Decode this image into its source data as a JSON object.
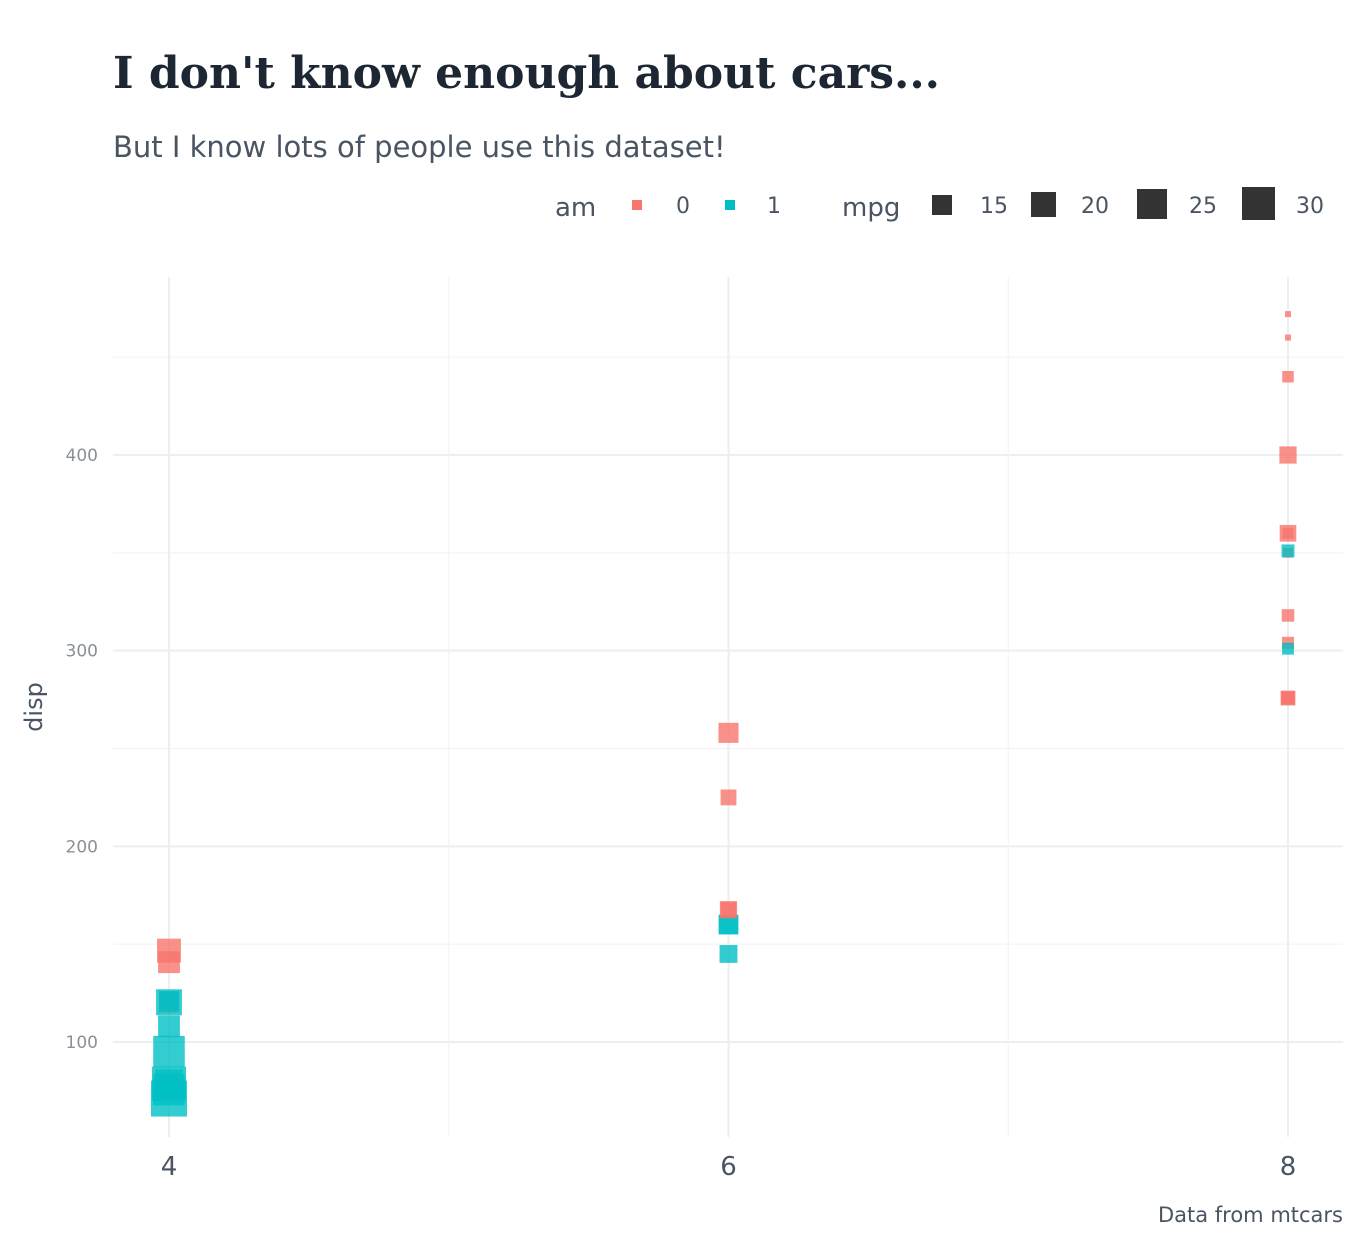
{
  "chart_data": {
    "type": "scatter",
    "title": "I don't know enough about cars...",
    "subtitle": "But I know lots of people use this dataset!",
    "caption": "Data from mtcars",
    "xlabel": "",
    "ylabel": "disp",
    "x_ticks": [
      4,
      6,
      8
    ],
    "y_ticks": [
      100,
      200,
      300,
      400
    ],
    "xlim": [
      3.8,
      8.2
    ],
    "ylim": [
      50,
      490
    ],
    "grid": true,
    "legend_position": "top-right",
    "color_legend": {
      "title": "am",
      "entries": [
        {
          "label": "0",
          "color": "#F8766D"
        },
        {
          "label": "1",
          "color": "#00BFC4"
        }
      ]
    },
    "size_legend": {
      "title": "mpg",
      "entries": [
        {
          "label": "15",
          "value": 15
        },
        {
          "label": "20",
          "value": 20
        },
        {
          "label": "25",
          "value": 25
        },
        {
          "label": "30",
          "value": 30
        }
      ]
    },
    "mpg_range": [
      10.4,
      33.9
    ],
    "points": [
      {
        "cyl": 6,
        "disp": 160,
        "am": 1,
        "mpg": 21.0
      },
      {
        "cyl": 6,
        "disp": 160,
        "am": 1,
        "mpg": 21.0
      },
      {
        "cyl": 4,
        "disp": 108,
        "am": 1,
        "mpg": 22.8
      },
      {
        "cyl": 6,
        "disp": 258,
        "am": 0,
        "mpg": 21.4
      },
      {
        "cyl": 8,
        "disp": 360,
        "am": 0,
        "mpg": 18.7
      },
      {
        "cyl": 6,
        "disp": 225,
        "am": 0,
        "mpg": 18.1
      },
      {
        "cyl": 8,
        "disp": 360,
        "am": 0,
        "mpg": 14.3
      },
      {
        "cyl": 4,
        "disp": 146.7,
        "am": 0,
        "mpg": 24.4
      },
      {
        "cyl": 4,
        "disp": 140.8,
        "am": 0,
        "mpg": 22.8
      },
      {
        "cyl": 6,
        "disp": 167.6,
        "am": 0,
        "mpg": 19.2
      },
      {
        "cyl": 6,
        "disp": 167.6,
        "am": 0,
        "mpg": 17.8
      },
      {
        "cyl": 8,
        "disp": 275.8,
        "am": 0,
        "mpg": 16.4
      },
      {
        "cyl": 8,
        "disp": 275.8,
        "am": 0,
        "mpg": 17.3
      },
      {
        "cyl": 8,
        "disp": 275.8,
        "am": 0,
        "mpg": 15.2
      },
      {
        "cyl": 8,
        "disp": 472,
        "am": 0,
        "mpg": 10.4
      },
      {
        "cyl": 8,
        "disp": 460,
        "am": 0,
        "mpg": 10.4
      },
      {
        "cyl": 8,
        "disp": 440,
        "am": 0,
        "mpg": 14.7
      },
      {
        "cyl": 4,
        "disp": 78.7,
        "am": 1,
        "mpg": 32.4
      },
      {
        "cyl": 4,
        "disp": 75.7,
        "am": 1,
        "mpg": 30.4
      },
      {
        "cyl": 4,
        "disp": 71.1,
        "am": 1,
        "mpg": 33.9
      },
      {
        "cyl": 4,
        "disp": 120.1,
        "am": 0,
        "mpg": 21.5
      },
      {
        "cyl": 8,
        "disp": 318,
        "am": 0,
        "mpg": 15.5
      },
      {
        "cyl": 8,
        "disp": 304,
        "am": 0,
        "mpg": 15.2
      },
      {
        "cyl": 8,
        "disp": 350,
        "am": 0,
        "mpg": 13.3
      },
      {
        "cyl": 8,
        "disp": 400,
        "am": 0,
        "mpg": 19.2
      },
      {
        "cyl": 4,
        "disp": 79,
        "am": 1,
        "mpg": 27.3
      },
      {
        "cyl": 4,
        "disp": 120.3,
        "am": 1,
        "mpg": 26.0
      },
      {
        "cyl": 4,
        "disp": 95.1,
        "am": 1,
        "mpg": 30.4
      },
      {
        "cyl": 8,
        "disp": 351,
        "am": 1,
        "mpg": 15.8
      },
      {
        "cyl": 6,
        "disp": 145,
        "am": 1,
        "mpg": 19.7
      },
      {
        "cyl": 8,
        "disp": 301,
        "am": 1,
        "mpg": 15.0
      },
      {
        "cyl": 4,
        "disp": 121,
        "am": 1,
        "mpg": 21.4
      }
    ]
  }
}
